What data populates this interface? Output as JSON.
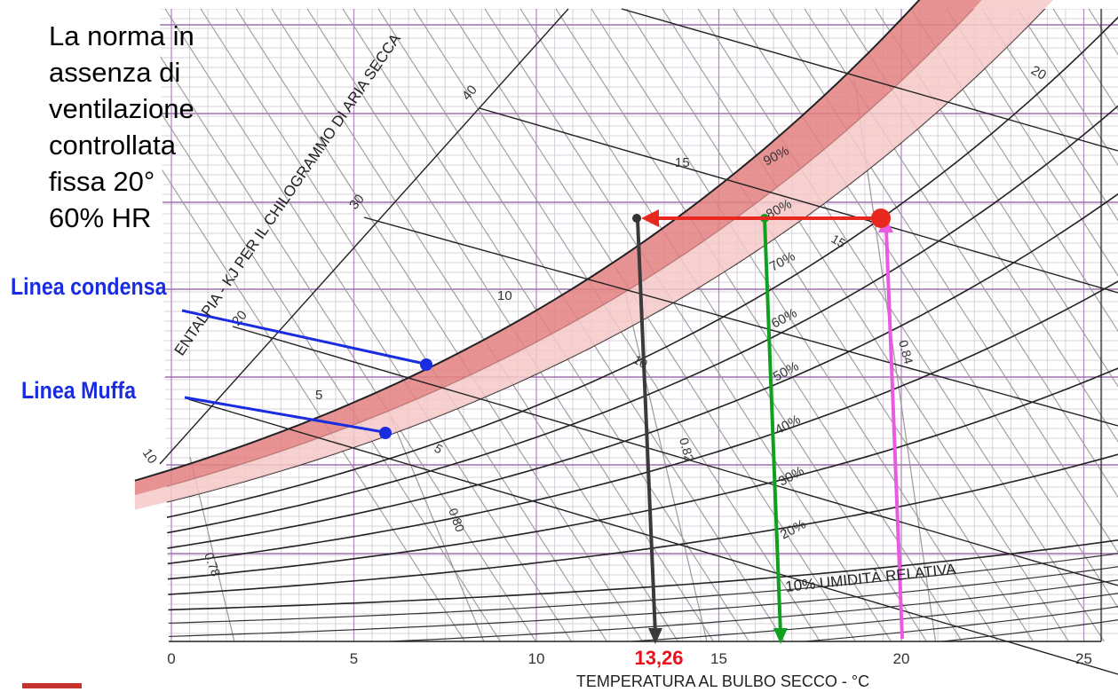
{
  "note": {
    "lines": [
      "La norma in",
      "assenza di",
      "ventilazione",
      "controllata",
      "fissa 20°",
      "60% HR"
    ]
  },
  "labels": {
    "condensa": "Linea condensa",
    "muffa": "Linea Muffa"
  },
  "chart": {
    "x_axis_title": "TEMPERATURA AL BULBO SECCO - °C",
    "enthalpy_axis_title": "ENTALPIA - KJ PER IL CHILOGRAMMO DI ARIA SECCA",
    "rh_axis_title": "10% UMIDITÀ RELATIVA",
    "x_ticks": [
      "0",
      "5",
      "10",
      "15",
      "20",
      "25"
    ],
    "enthalpy_ticks": [
      "10",
      "20",
      "30",
      "40"
    ],
    "wetbulb_ticks": [
      "5",
      "10",
      "15",
      "20"
    ],
    "rh_labels": [
      "90%",
      "80%",
      "70%",
      "60%",
      "50%",
      "40%",
      "30%",
      "20%"
    ],
    "volume_labels": [
      "0.78",
      "0.80",
      "0.82",
      "0.84"
    ],
    "dew_point_value": "13,26"
  },
  "colors": {
    "condensa_band": "#e07a7a",
    "muffa_band": "#f6c6c6",
    "arrow_red": "#e8281e",
    "line_green": "#10a020",
    "line_magenta": "#e85ae0",
    "line_black": "#333333",
    "label_blue": "#1a2ce0",
    "grid_purple": "#9a6aa8"
  }
}
